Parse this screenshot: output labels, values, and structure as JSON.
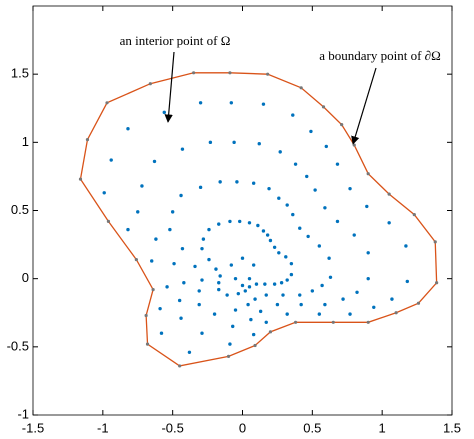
{
  "chart_data": {
    "type": "scatter",
    "xlim": [
      -1.5,
      1.5
    ],
    "ylim": [
      -1,
      2
    ],
    "xticks": [
      -1.5,
      -1,
      -0.5,
      0,
      0.5,
      1,
      1.5
    ],
    "yticks": [
      -1,
      -0.5,
      0,
      0.5,
      1,
      1.5
    ],
    "annotations": [
      "an interior point of Ω",
      "a boundary point of ∂Ω"
    ],
    "points": {
      "color": "#0072bd",
      "x": [
        -0.02,
        -0.04,
        -0.06,
        -0.08,
        0.05,
        0.08,
        0.12,
        0.15,
        0.11,
        0.19,
        0.27,
        0.36,
        0.15,
        0.26,
        0.38,
        0.49,
        0.18,
        0.32,
        0.46,
        0.6,
        0.2,
        0.36,
        0.52,
        0.68,
        0.23,
        0.41,
        0.59,
        0.77,
        0.26,
        0.47,
        0.68,
        0.89,
        0.31,
        0.55,
        0.8,
        1.05,
        0.35,
        0.62,
        0.9,
        1.17,
        0.35,
        0.63,
        0.9,
        1.18,
        0.32,
        0.57,
        0.82,
        1.07,
        0.28,
        0.5,
        0.72,
        0.94,
        0.23,
        0.41,
        0.59,
        0.77,
        0.16,
        0.29,
        0.42,
        0.55,
        0.1,
        0.17,
        0.25,
        0.32,
        0.05,
        0.09,
        0.13,
        0.17,
        0.02,
        0.04,
        0.06,
        0.08,
        -0.03,
        -0.05,
        -0.07,
        -0.09,
        -0.11,
        -0.2,
        -0.29,
        -0.38,
        -0.17,
        -0.31,
        -0.44,
        -0.58,
        -0.17,
        -0.31,
        -0.45,
        -0.59,
        -0.16,
        -0.29,
        -0.42,
        -0.54,
        -0.19,
        -0.34,
        -0.49,
        -0.65,
        -0.24,
        -0.43,
        -0.62,
        -0.82,
        -0.29,
        -0.52,
        -0.75,
        -0.99,
        -0.28,
        -0.5,
        -0.72,
        -0.94,
        -0.24,
        -0.44,
        -0.63,
        -0.82,
        -0.17,
        -0.3,
        -0.43,
        -0.56,
        -0.09,
        -0.16,
        -0.23,
        -0.3,
        0.0,
        0.05,
        -0.05,
        -0.08,
        0.0,
        0.08
      ],
      "y": [
        0.42,
        0.71,
        1.0,
        1.29,
        0.41,
        0.7,
        0.99,
        1.28,
        0.39,
        0.66,
        0.93,
        1.2,
        0.35,
        0.59,
        0.84,
        1.08,
        0.32,
        0.54,
        0.75,
        0.97,
        0.28,
        0.47,
        0.65,
        0.84,
        0.23,
        0.37,
        0.52,
        0.66,
        0.19,
        0.31,
        0.42,
        0.53,
        0.16,
        0.24,
        0.32,
        0.41,
        0.11,
        0.15,
        0.19,
        0.24,
        0.03,
        0.01,
        0.0,
        -0.02,
        -0.01,
        -0.05,
        -0.1,
        -0.15,
        -0.03,
        -0.09,
        -0.15,
        -0.21,
        -0.04,
        -0.12,
        -0.19,
        -0.26,
        -0.04,
        -0.12,
        -0.19,
        -0.26,
        -0.04,
        -0.12,
        -0.19,
        -0.26,
        -0.06,
        -0.15,
        -0.24,
        -0.32,
        -0.09,
        -0.19,
        -0.3,
        -0.41,
        -0.11,
        -0.23,
        -0.35,
        -0.48,
        -0.12,
        -0.26,
        -0.4,
        -0.54,
        -0.08,
        -0.19,
        -0.29,
        -0.4,
        -0.03,
        -0.09,
        -0.16,
        -0.22,
        0.02,
        -0.01,
        -0.03,
        -0.06,
        0.07,
        0.09,
        0.11,
        0.13,
        0.14,
        0.22,
        0.29,
        0.36,
        0.22,
        0.36,
        0.49,
        0.63,
        0.29,
        0.49,
        0.68,
        0.87,
        0.36,
        0.61,
        0.86,
        1.1,
        0.4,
        0.67,
        0.95,
        1.22,
        0.42,
        0.71,
        1.0,
        1.29,
        -0.05,
        0.0,
        0.0,
        0.1,
        0.15,
        0.1
      ]
    },
    "boundary": {
      "color": "#d95319",
      "marker_color": "#777777",
      "x": [
        -0.09,
        0.18,
        0.42,
        0.58,
        0.71,
        0.8,
        0.9,
        1.05,
        1.23,
        1.38,
        1.39,
        1.26,
        1.1,
        0.9,
        0.65,
        0.38,
        0.2,
        0.09,
        -0.1,
        -0.45,
        -0.68,
        -0.69,
        -0.64,
        -0.76,
        -0.96,
        -1.16,
        -1.11,
        -0.97,
        -0.66,
        -0.35
      ],
      "y": [
        1.51,
        1.5,
        1.4,
        1.26,
        1.13,
        0.98,
        0.77,
        0.62,
        0.47,
        0.27,
        -0.03,
        -0.18,
        -0.25,
        -0.32,
        -0.32,
        -0.32,
        -0.39,
        -0.49,
        -0.57,
        -0.64,
        -0.48,
        -0.27,
        -0.08,
        0.14,
        0.42,
        0.73,
        1.02,
        1.29,
        1.43,
        1.51
      ]
    }
  }
}
